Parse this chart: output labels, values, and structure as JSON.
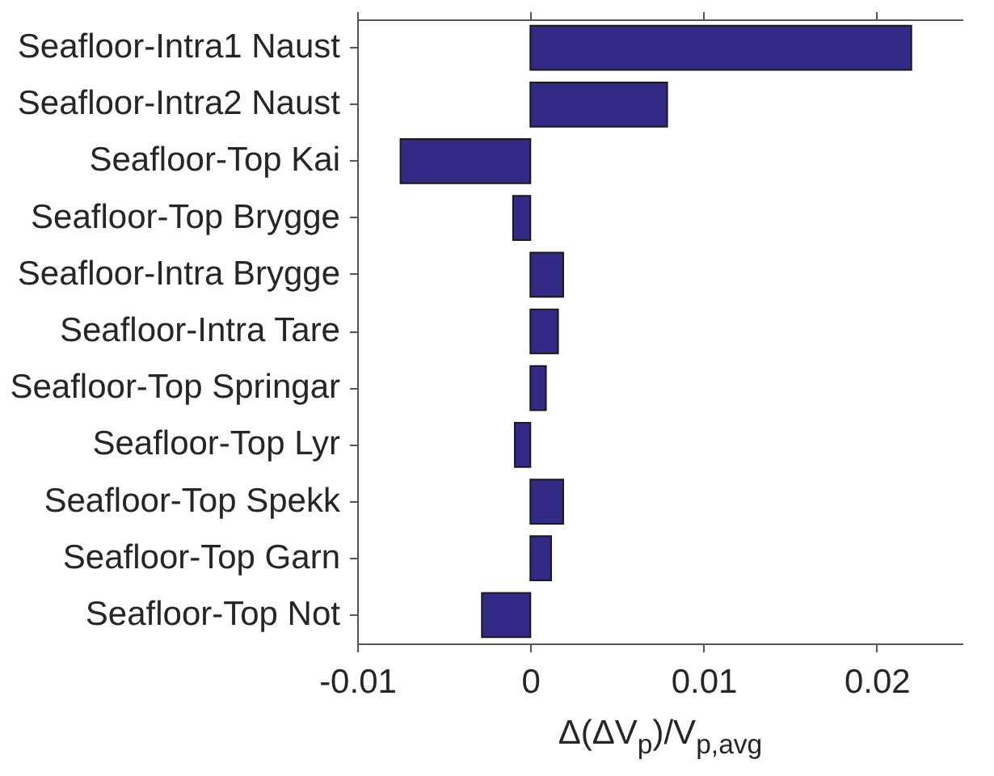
{
  "chart_data": {
    "type": "bar",
    "orientation": "horizontal",
    "xlabel": "Δ(ΔV$_{p}$)/V$_{p,avg}$",
    "categories": [
      "Seafloor-Intra1 Naust",
      "Seafloor-Intra2 Naust",
      "Seafloor-Top Kai",
      "Seafloor-Top Brygge",
      "Seafloor-Intra Brygge",
      "Seafloor-Intra Tare",
      "Seafloor-Top Springar",
      "Seafloor-Top Lyr",
      "Seafloor-Top Spekk",
      "Seafloor-Top Garn",
      "Seafloor-Top Not"
    ],
    "values": [
      0.022,
      0.0079,
      -0.0075,
      -0.001,
      0.0019,
      0.0016,
      0.0009,
      -0.0009,
      0.0019,
      0.0012,
      -0.0028
    ],
    "color": "#332a85",
    "xlim": [
      -0.01,
      0.025
    ],
    "xticks": [
      -0.01,
      0,
      0.01,
      0.02
    ]
  }
}
